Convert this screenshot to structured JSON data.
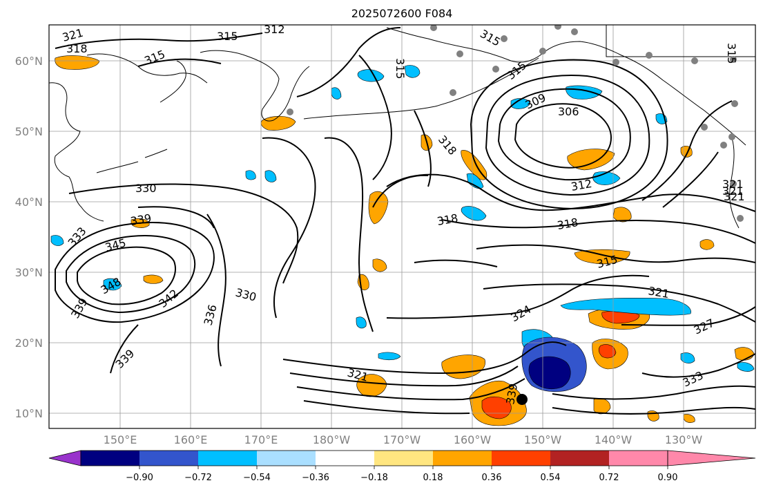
{
  "title": "2025072600 F084",
  "lat_labels": [
    "60°N",
    "50°N",
    "40°N",
    "30°N",
    "20°N",
    "10°N"
  ],
  "lon_labels": [
    "150°E",
    "160°E",
    "170°E",
    "180°W",
    "170°W",
    "160°W",
    "150°W",
    "140°W",
    "130°W"
  ],
  "contour_labels": [
    "321",
    "318",
    "315",
    "315",
    "312",
    "315",
    "315",
    "315",
    "315",
    "309",
    "306",
    "318",
    "312",
    "318",
    "318",
    "330",
    "339",
    "333",
    "345",
    "348",
    "339",
    "342",
    "330",
    "336",
    "315",
    "321",
    "324",
    "321",
    "327",
    "333",
    "321",
    "339",
    "339",
    "321",
    "321"
  ],
  "colorbar": {
    "ticks": [
      "−0.90",
      "−0.72",
      "−0.54",
      "−0.36",
      "−0.18",
      "0.18",
      "0.36",
      "0.54",
      "0.72",
      "0.90"
    ],
    "colors": [
      "#9933cc",
      "#000080",
      "#3355cc",
      "#00bfff",
      "#aadfff",
      "#ffffff",
      "#ffe680",
      "#ffa500",
      "#ff4000",
      "#b22222",
      "#ff88aa"
    ]
  },
  "fill_colors": {
    "orange": "#ffa500",
    "red": "#ff4000",
    "yellow": "#ffe680",
    "cyan": "#00bfff",
    "lightblue": "#aadfff",
    "blue": "#3355cc",
    "navy": "#000080"
  }
}
